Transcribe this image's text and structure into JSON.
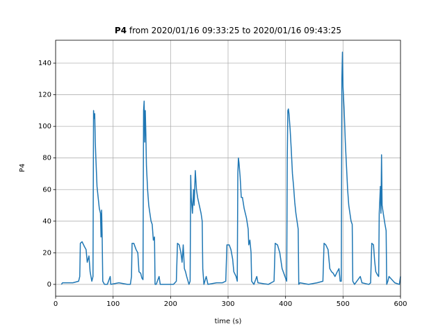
{
  "chart_data": {
    "type": "line",
    "title": [
      "P4",
      "from 2020/01/16 09:33:25 to 2020/01/16 09:43:25"
    ],
    "xlabel": "time (s)",
    "ylabel": "P4",
    "xlim": [
      0,
      600
    ],
    "ylim": [
      -7.5,
      154.5
    ],
    "xticks": [
      0,
      100,
      200,
      300,
      400,
      500,
      600
    ],
    "yticks": [
      0,
      20,
      40,
      60,
      80,
      100,
      120,
      140
    ],
    "grid": true,
    "series": [
      {
        "name": "P4",
        "color": "#1f77b4",
        "x": [
          10,
          12,
          20,
          30,
          40,
          42,
          43,
          46,
          50,
          53,
          55,
          58,
          60,
          63,
          65,
          66,
          67,
          68,
          69,
          70,
          72,
          74,
          76,
          78,
          79,
          80,
          81,
          82,
          85,
          90,
          95,
          96,
          110,
          125,
          130,
          132,
          133,
          136,
          140,
          143,
          145,
          148,
          150,
          152,
          153,
          154,
          155,
          156,
          157,
          158,
          160,
          162,
          164,
          166,
          168,
          170,
          172,
          173,
          175,
          180,
          182,
          195,
          200,
          205,
          210,
          212,
          215,
          218,
          220,
          222,
          224,
          226,
          228,
          232,
          234,
          235,
          236,
          238,
          240,
          241,
          243,
          245,
          247,
          250,
          253,
          255,
          256,
          258,
          262,
          265,
          280,
          290,
          296,
          298,
          302,
          305,
          308,
          310,
          314,
          316,
          317,
          318,
          319,
          321,
          323,
          325,
          328,
          332,
          335,
          336,
          338,
          340,
          341,
          345,
          350,
          352,
          370,
          380,
          382,
          386,
          390,
          394,
          397,
          400,
          402,
          403,
          404,
          405,
          406,
          408,
          410,
          412,
          414,
          416,
          418,
          420,
          422,
          423,
          425,
          440,
          455,
          465,
          467,
          470,
          474,
          477,
          480,
          483,
          486,
          490,
          493,
          495,
          497,
          498,
          499,
          500,
          502,
          504,
          506,
          508,
          510,
          512,
          514,
          516,
          517,
          520,
          530,
          533,
          545,
          548,
          550,
          553,
          555,
          557,
          560,
          562,
          563,
          565,
          566,
          567,
          568,
          570,
          573,
          575,
          576,
          578,
          580,
          590,
          598,
          600
        ],
        "values": [
          0,
          1,
          1,
          1,
          2,
          5,
          26,
          27,
          24,
          22,
          14,
          18,
          8,
          2,
          5,
          110,
          105,
          108,
          90,
          80,
          62,
          55,
          48,
          45,
          30,
          47,
          30,
          2,
          0,
          0,
          5,
          0,
          1,
          0,
          0,
          5,
          26,
          26,
          22,
          20,
          8,
          7,
          4,
          3,
          110,
          116,
          90,
          110,
          95,
          75,
          60,
          50,
          45,
          40,
          38,
          28,
          30,
          0,
          0,
          5,
          0,
          0,
          0,
          0,
          2,
          26,
          25,
          20,
          14,
          25,
          10,
          8,
          5,
          0,
          2,
          69,
          55,
          45,
          60,
          50,
          72,
          60,
          55,
          50,
          45,
          40,
          10,
          0,
          5,
          0,
          1,
          1,
          2,
          25,
          25,
          22,
          16,
          8,
          5,
          2,
          70,
          80,
          77,
          68,
          55,
          55,
          48,
          42,
          35,
          25,
          28,
          20,
          2,
          0,
          5,
          1,
          0,
          2,
          26,
          25,
          20,
          10,
          7,
          4,
          2,
          80,
          110,
          111,
          108,
          98,
          85,
          70,
          62,
          52,
          45,
          40,
          35,
          0,
          1,
          0,
          1,
          2,
          26,
          25,
          22,
          10,
          8,
          7,
          5,
          8,
          10,
          2,
          2,
          130,
          147,
          125,
          110,
          90,
          75,
          60,
          50,
          45,
          40,
          38,
          2,
          0,
          5,
          1,
          0,
          1,
          26,
          25,
          15,
          8,
          6,
          5,
          45,
          62,
          45,
          82,
          50,
          45,
          38,
          34,
          0,
          2,
          5,
          1,
          0,
          5
        ]
      }
    ]
  }
}
